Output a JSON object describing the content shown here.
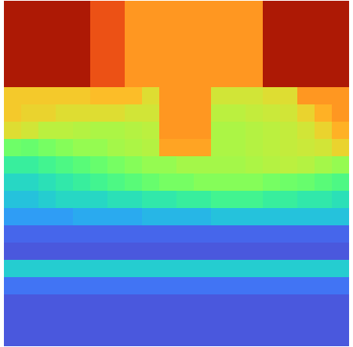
{
  "chart_data": {
    "type": "heatmap",
    "tick_labels": false,
    "zlim": [
      0,
      1
    ],
    "cells": [
      [
        0.92,
        0.92,
        0.92,
        0.92,
        0.92,
        0.82,
        0.82,
        0.72,
        0.72,
        0.72,
        0.72,
        0.72,
        0.72,
        0.72,
        0.72,
        0.92,
        0.92,
        0.92,
        0.92,
        0.92
      ],
      [
        0.92,
        0.92,
        0.92,
        0.92,
        0.92,
        0.82,
        0.82,
        0.72,
        0.72,
        0.72,
        0.72,
        0.72,
        0.72,
        0.72,
        0.72,
        0.92,
        0.92,
        0.92,
        0.92,
        0.92
      ],
      [
        0.92,
        0.92,
        0.92,
        0.92,
        0.92,
        0.82,
        0.82,
        0.72,
        0.72,
        0.72,
        0.72,
        0.72,
        0.72,
        0.72,
        0.72,
        0.92,
        0.92,
        0.92,
        0.92,
        0.92
      ],
      [
        0.92,
        0.92,
        0.92,
        0.92,
        0.92,
        0.82,
        0.82,
        0.72,
        0.72,
        0.72,
        0.72,
        0.72,
        0.72,
        0.72,
        0.72,
        0.92,
        0.92,
        0.92,
        0.92,
        0.92
      ],
      [
        0.92,
        0.92,
        0.92,
        0.92,
        0.92,
        0.82,
        0.82,
        0.72,
        0.72,
        0.72,
        0.72,
        0.72,
        0.72,
        0.72,
        0.72,
        0.92,
        0.92,
        0.92,
        0.92,
        0.92
      ],
      [
        0.64,
        0.64,
        0.64,
        0.64,
        0.64,
        0.66,
        0.66,
        0.66,
        0.6,
        0.72,
        0.72,
        0.72,
        0.58,
        0.58,
        0.58,
        0.6,
        0.6,
        0.72,
        0.72,
        0.72
      ],
      [
        0.64,
        0.62,
        0.62,
        0.6,
        0.6,
        0.6,
        0.6,
        0.58,
        0.58,
        0.72,
        0.72,
        0.72,
        0.55,
        0.55,
        0.56,
        0.57,
        0.58,
        0.62,
        0.68,
        0.72
      ],
      [
        0.6,
        0.58,
        0.55,
        0.55,
        0.54,
        0.53,
        0.53,
        0.54,
        0.55,
        0.72,
        0.72,
        0.72,
        0.53,
        0.53,
        0.54,
        0.55,
        0.56,
        0.58,
        0.62,
        0.68
      ],
      [
        0.45,
        0.44,
        0.46,
        0.48,
        0.5,
        0.5,
        0.52,
        0.53,
        0.54,
        0.7,
        0.7,
        0.7,
        0.53,
        0.53,
        0.54,
        0.55,
        0.56,
        0.57,
        0.58,
        0.62
      ],
      [
        0.36,
        0.36,
        0.38,
        0.4,
        0.42,
        0.44,
        0.46,
        0.48,
        0.5,
        0.5,
        0.52,
        0.52,
        0.52,
        0.52,
        0.53,
        0.54,
        0.55,
        0.54,
        0.52,
        0.5
      ],
      [
        0.3,
        0.3,
        0.32,
        0.34,
        0.36,
        0.38,
        0.4,
        0.42,
        0.44,
        0.46,
        0.46,
        0.48,
        0.48,
        0.48,
        0.48,
        0.46,
        0.45,
        0.44,
        0.42,
        0.4
      ],
      [
        0.26,
        0.26,
        0.28,
        0.3,
        0.3,
        0.3,
        0.32,
        0.32,
        0.34,
        0.34,
        0.36,
        0.36,
        0.38,
        0.38,
        0.38,
        0.36,
        0.36,
        0.34,
        0.34,
        0.32
      ],
      [
        0.2,
        0.2,
        0.2,
        0.2,
        0.22,
        0.22,
        0.22,
        0.22,
        0.24,
        0.24,
        0.24,
        0.24,
        0.26,
        0.26,
        0.26,
        0.26,
        0.26,
        0.26,
        0.26,
        0.26
      ],
      [
        0.12,
        0.12,
        0.12,
        0.12,
        0.12,
        0.12,
        0.12,
        0.12,
        0.12,
        0.12,
        0.12,
        0.12,
        0.12,
        0.12,
        0.12,
        0.12,
        0.12,
        0.12,
        0.12,
        0.12
      ],
      [
        0.1,
        0.1,
        0.1,
        0.1,
        0.1,
        0.1,
        0.1,
        0.1,
        0.1,
        0.1,
        0.1,
        0.1,
        0.1,
        0.1,
        0.1,
        0.1,
        0.1,
        0.1,
        0.1,
        0.1
      ],
      [
        0.28,
        0.28,
        0.28,
        0.28,
        0.28,
        0.28,
        0.28,
        0.28,
        0.28,
        0.28,
        0.28,
        0.28,
        0.28,
        0.28,
        0.28,
        0.28,
        0.28,
        0.28,
        0.28,
        0.28
      ],
      [
        0.14,
        0.14,
        0.14,
        0.14,
        0.14,
        0.14,
        0.14,
        0.14,
        0.14,
        0.14,
        0.14,
        0.14,
        0.14,
        0.14,
        0.14,
        0.14,
        0.14,
        0.14,
        0.14,
        0.14
      ],
      [
        0.1,
        0.1,
        0.1,
        0.1,
        0.1,
        0.1,
        0.1,
        0.1,
        0.1,
        0.1,
        0.1,
        0.1,
        0.1,
        0.1,
        0.1,
        0.1,
        0.1,
        0.1,
        0.1,
        0.1
      ],
      [
        0.1,
        0.1,
        0.1,
        0.1,
        0.1,
        0.1,
        0.1,
        0.1,
        0.1,
        0.1,
        0.1,
        0.1,
        0.1,
        0.1,
        0.1,
        0.1,
        0.1,
        0.1,
        0.1,
        0.1
      ],
      [
        0.1,
        0.1,
        0.1,
        0.1,
        0.1,
        0.1,
        0.1,
        0.1,
        0.1,
        0.1,
        0.1,
        0.1,
        0.1,
        0.1,
        0.1,
        0.1,
        0.1,
        0.1,
        0.1,
        0.1
      ]
    ]
  }
}
